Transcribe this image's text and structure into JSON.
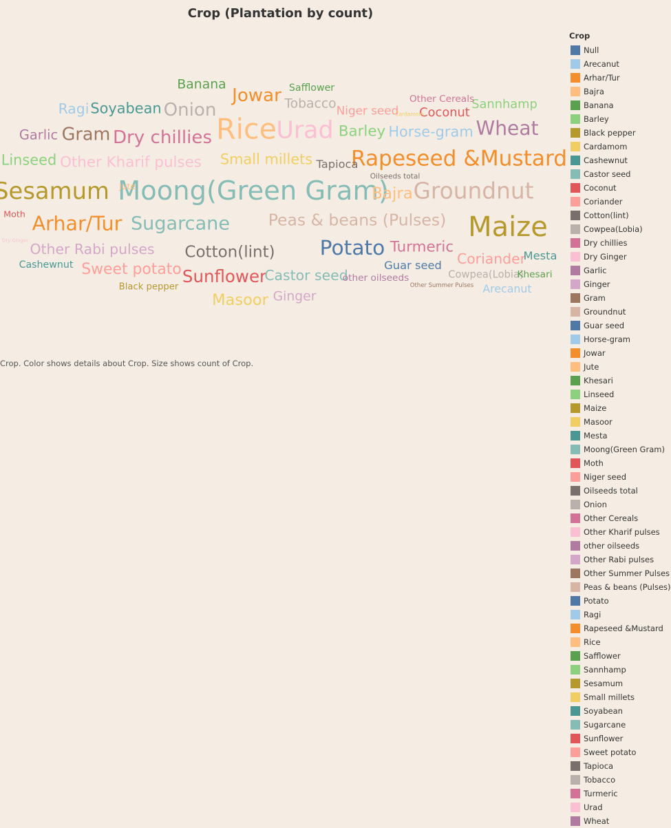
{
  "title": "Crop (Plantation by count)",
  "caption": "Crop.  Color shows details about Crop.  Size shows count of Crop.",
  "legend": {
    "title": "Crop",
    "items": [
      {
        "label": "Null",
        "color": "#4e79a7"
      },
      {
        "label": "Arecanut",
        "color": "#a0cbe8"
      },
      {
        "label": "Arhar/Tur",
        "color": "#f28e2b"
      },
      {
        "label": "Bajra",
        "color": "#ffbe7d"
      },
      {
        "label": "Banana",
        "color": "#59a14f"
      },
      {
        "label": "Barley",
        "color": "#8cd17d"
      },
      {
        "label": "Black pepper",
        "color": "#b6992d"
      },
      {
        "label": "Cardamom",
        "color": "#f1ce63"
      },
      {
        "label": "Cashewnut",
        "color": "#499894"
      },
      {
        "label": "Castor seed",
        "color": "#86bcb6"
      },
      {
        "label": "Coconut",
        "color": "#e15759"
      },
      {
        "label": "Coriander",
        "color": "#ff9d9a"
      },
      {
        "label": "Cotton(lint)",
        "color": "#79706e"
      },
      {
        "label": "Cowpea(Lobia)",
        "color": "#bab0ac"
      },
      {
        "label": "Dry chillies",
        "color": "#d37295"
      },
      {
        "label": "Dry Ginger",
        "color": "#fabfd2"
      },
      {
        "label": "Garlic",
        "color": "#b07aa1"
      },
      {
        "label": "Ginger",
        "color": "#d4a6c8"
      },
      {
        "label": "Gram",
        "color": "#9d7660"
      },
      {
        "label": "Groundnut",
        "color": "#d7b5a6"
      },
      {
        "label": "Guar seed",
        "color": "#4e79a7"
      },
      {
        "label": "Horse-gram",
        "color": "#a0cbe8"
      },
      {
        "label": "Jowar",
        "color": "#f28e2b"
      },
      {
        "label": "Jute",
        "color": "#ffbe7d"
      },
      {
        "label": "Khesari",
        "color": "#59a14f"
      },
      {
        "label": "Linseed",
        "color": "#8cd17d"
      },
      {
        "label": "Maize",
        "color": "#b6992d"
      },
      {
        "label": "Masoor",
        "color": "#f1ce63"
      },
      {
        "label": "Mesta",
        "color": "#499894"
      },
      {
        "label": "Moong(Green Gram)",
        "color": "#86bcb6"
      },
      {
        "label": "Moth",
        "color": "#e15759"
      },
      {
        "label": "Niger seed",
        "color": "#ff9d9a"
      },
      {
        "label": "Oilseeds total",
        "color": "#79706e"
      },
      {
        "label": "Onion",
        "color": "#bab0ac"
      },
      {
        "label": "Other Cereals",
        "color": "#d37295"
      },
      {
        "label": "Other Kharif pulses",
        "color": "#fabfd2"
      },
      {
        "label": "other oilseeds",
        "color": "#b07aa1"
      },
      {
        "label": "Other Rabi pulses",
        "color": "#d4a6c8"
      },
      {
        "label": "Other Summer Pulses",
        "color": "#9d7660"
      },
      {
        "label": "Peas & beans (Pulses)",
        "color": "#d7b5a6"
      },
      {
        "label": "Potato",
        "color": "#4e79a7"
      },
      {
        "label": "Ragi",
        "color": "#a0cbe8"
      },
      {
        "label": "Rapeseed &Mustard",
        "color": "#f28e2b"
      },
      {
        "label": "Rice",
        "color": "#ffbe7d"
      },
      {
        "label": "Safflower",
        "color": "#59a14f"
      },
      {
        "label": "Sannhamp",
        "color": "#8cd17d"
      },
      {
        "label": "Sesamum",
        "color": "#b6992d"
      },
      {
        "label": "Small millets",
        "color": "#f1ce63"
      },
      {
        "label": "Soyabean",
        "color": "#499894"
      },
      {
        "label": "Sugarcane",
        "color": "#86bcb6"
      },
      {
        "label": "Sunflower",
        "color": "#e15759"
      },
      {
        "label": "Sweet potato",
        "color": "#ff9d9a"
      },
      {
        "label": "Tapioca",
        "color": "#79706e"
      },
      {
        "label": "Tobacco",
        "color": "#bab0ac"
      },
      {
        "label": "Turmeric",
        "color": "#d37295"
      },
      {
        "label": "Urad",
        "color": "#fabfd2"
      },
      {
        "label": "Wheat",
        "color": "#b07aa1"
      }
    ]
  },
  "chart_data": {
    "type": "wordcloud",
    "title": "Crop (Plantation by count)",
    "series": [
      {
        "name": "Rice",
        "count": 98
      },
      {
        "name": "Maize",
        "count": 96
      },
      {
        "name": "Moong(Green Gram)",
        "count": 93
      },
      {
        "name": "Urad",
        "count": 86
      },
      {
        "name": "Sesamum",
        "count": 84
      },
      {
        "name": "Groundnut",
        "count": 82
      },
      {
        "name": "Rapeseed &Mustard",
        "count": 79
      },
      {
        "name": "Potato",
        "count": 76
      },
      {
        "name": "Arhar/Tur",
        "count": 74
      },
      {
        "name": "Wheat",
        "count": 73
      },
      {
        "name": "Sugarcane",
        "count": 71
      },
      {
        "name": "Onion",
        "count": 69
      },
      {
        "name": "Dry chillies",
        "count": 69
      },
      {
        "name": "Jowar",
        "count": 69
      },
      {
        "name": "Gram",
        "count": 68
      },
      {
        "name": "Sunflower",
        "count": 66
      },
      {
        "name": "Peas & beans (Pulses)",
        "count": 64
      },
      {
        "name": "Cotton(lint)",
        "count": 63
      },
      {
        "name": "Bajra",
        "count": 63
      },
      {
        "name": "Masoor",
        "count": 62
      },
      {
        "name": "Sweet potato",
        "count": 61
      },
      {
        "name": "Turmeric",
        "count": 60
      },
      {
        "name": "Other Kharif pulses",
        "count": 60
      },
      {
        "name": "Barley",
        "count": 60
      },
      {
        "name": "Soyabean",
        "count": 59
      },
      {
        "name": "Small millets",
        "count": 59
      },
      {
        "name": "Linseed",
        "count": 59
      },
      {
        "name": "Horse-gram",
        "count": 59
      },
      {
        "name": "Castor seed",
        "count": 58
      },
      {
        "name": "Coriander",
        "count": 58
      },
      {
        "name": "Other Rabi pulses",
        "count": 58
      },
      {
        "name": "Ragi",
        "count": 58
      },
      {
        "name": "Garlic",
        "count": 56
      },
      {
        "name": "Ginger",
        "count": 55
      },
      {
        "name": "Banana",
        "count": 55
      },
      {
        "name": "Tobacco",
        "count": 55
      },
      {
        "name": "Sannhamp",
        "count": 53
      },
      {
        "name": "Coconut",
        "count": 53
      },
      {
        "name": "Niger seed",
        "count": 51
      },
      {
        "name": "Tapioca",
        "count": 50
      },
      {
        "name": "Guar seed",
        "count": 50
      },
      {
        "name": "Mesta",
        "count": 50
      },
      {
        "name": "Arecanut",
        "count": 49
      },
      {
        "name": "Cowpea(Lobia)",
        "count": 47
      },
      {
        "name": "Safflower",
        "count": 46
      },
      {
        "name": "Cashewnut",
        "count": 46
      },
      {
        "name": "Khesari",
        "count": 45
      },
      {
        "name": "other oilseeds",
        "count": 45
      },
      {
        "name": "Other Cereals",
        "count": 45
      },
      {
        "name": "Black pepper",
        "count": 44
      },
      {
        "name": "Moth",
        "count": 43
      },
      {
        "name": "Jute",
        "count": 42
      },
      {
        "name": "Oilseeds total",
        "count": 39
      },
      {
        "name": "Other Summer Pulses",
        "count": 35
      },
      {
        "name": "Cardamom",
        "count": 33
      },
      {
        "name": "Dry Ginger",
        "count": 32
      }
    ]
  }
}
